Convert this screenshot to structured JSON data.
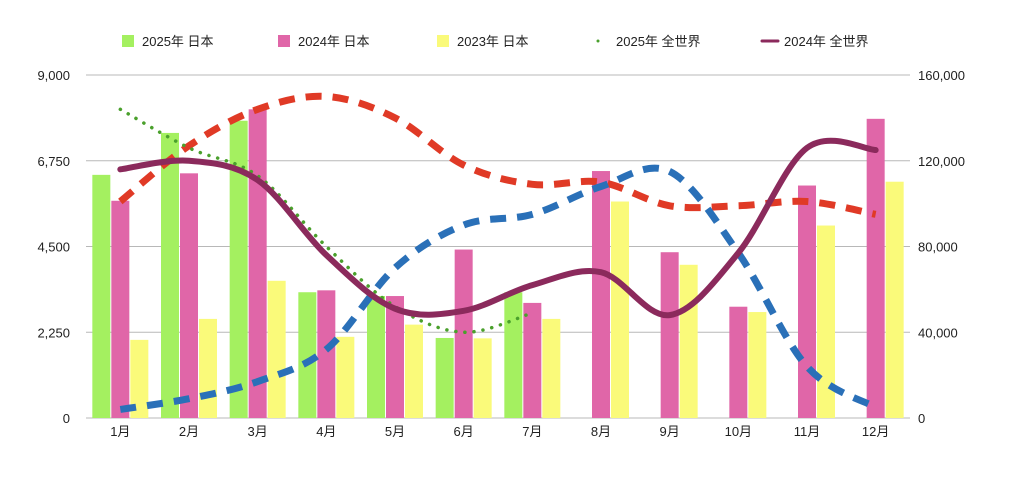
{
  "chart_data": {
    "type": "bar",
    "categories": [
      "1月",
      "2月",
      "3月",
      "4月",
      "5月",
      "6月",
      "7月",
      "8月",
      "9月",
      "10月",
      "11月",
      "12月"
    ],
    "bar_series": [
      {
        "name": "2025年 日本",
        "color": "#a4f060",
        "values": [
          6380,
          7480,
          7800,
          3300,
          3200,
          2100,
          3300,
          null,
          null,
          null,
          null,
          null
        ]
      },
      {
        "name": "2024年 日本",
        "color": "#e066a8",
        "values": [
          5700,
          6420,
          8100,
          3350,
          3200,
          4420,
          3020,
          6480,
          4350,
          2920,
          6100,
          7850
        ]
      },
      {
        "name": "2023年 日本",
        "color": "#fafa7a",
        "values": [
          2050,
          2600,
          3600,
          2130,
          2450,
          2090,
          2600,
          5680,
          4020,
          2780,
          5050,
          6200
        ]
      }
    ],
    "line_series": [
      {
        "name": "2025年 全世界",
        "color": "#4aa02c",
        "style": "dotted",
        "values": [
          144000,
          126000,
          113000,
          80000,
          52000,
          40000,
          49000,
          null,
          null,
          null,
          null,
          null
        ]
      },
      {
        "name": "2024年 全世界",
        "color": "#8b2a5c",
        "style": "solid",
        "values": [
          116000,
          120000,
          111000,
          76000,
          51000,
          50000,
          62000,
          68000,
          48000,
          77000,
          126000,
          125000
        ]
      },
      {
        "name": "",
        "color": "#e03a26",
        "style": "dashed",
        "values": [
          101000,
          127000,
          144000,
          150000,
          140000,
          118000,
          109000,
          110000,
          99000,
          99000,
          101000,
          95000
        ]
      },
      {
        "name": "",
        "color": "#2a70b8",
        "style": "dashed",
        "values": [
          4000,
          9000,
          17000,
          32000,
          70000,
          90000,
          95000,
          108000,
          115000,
          77000,
          24000,
          5000
        ]
      }
    ],
    "y_left": {
      "min": 0,
      "max": 9000,
      "ticks": [
        0,
        2250,
        4500,
        6750,
        9000
      ],
      "tick_labels": [
        "0",
        "2,250",
        "4,500",
        "6,750",
        "9,000"
      ]
    },
    "y_right": {
      "min": 0,
      "max": 160000,
      "ticks": [
        0,
        40000,
        80000,
        120000,
        160000
      ],
      "tick_labels": [
        "0",
        "40,000",
        "80,000",
        "120,000",
        "160,000"
      ]
    },
    "legend_position": "top",
    "grid": true,
    "title": "",
    "xlabel": "",
    "ylabel": ""
  }
}
